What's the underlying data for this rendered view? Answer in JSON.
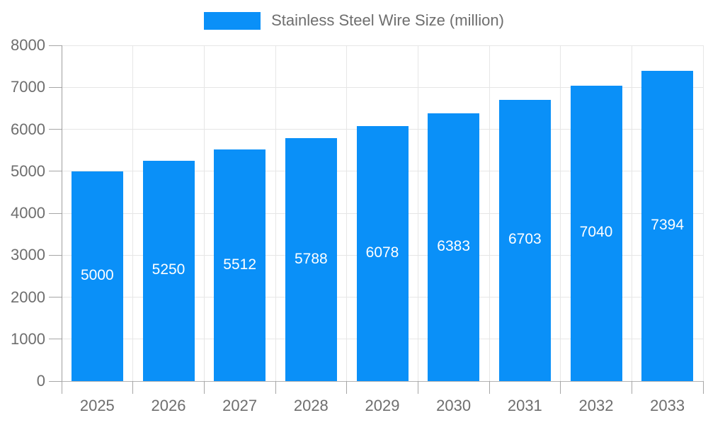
{
  "chart_data": {
    "type": "bar",
    "title": "",
    "legend": "Stainless Steel Wire Size (million)",
    "legend_position": "top",
    "categories": [
      "2025",
      "2026",
      "2027",
      "2028",
      "2029",
      "2030",
      "2031",
      "2032",
      "2033"
    ],
    "values": [
      5000,
      5250,
      5512,
      5788,
      6078,
      6383,
      6703,
      7040,
      7394
    ],
    "value_labels": [
      "5000",
      "5250",
      "5512",
      "5788",
      "6078",
      "6383",
      "6703",
      "7040",
      "7394"
    ],
    "xlabel": "",
    "ylabel": "",
    "ylim": [
      0,
      8000
    ],
    "yticks": [
      0,
      1000,
      2000,
      3000,
      4000,
      5000,
      6000,
      7000,
      8000
    ],
    "grid": true,
    "colors": {
      "bar": "#0a90f8",
      "grid": "#e6e6e6",
      "axis_line": "#9e9e9e",
      "baseline": "#b3b3b3",
      "tick": "#a6a6a6",
      "text": "#6e6e6e",
      "value_label": "#ffffff",
      "background": "#ffffff"
    }
  }
}
